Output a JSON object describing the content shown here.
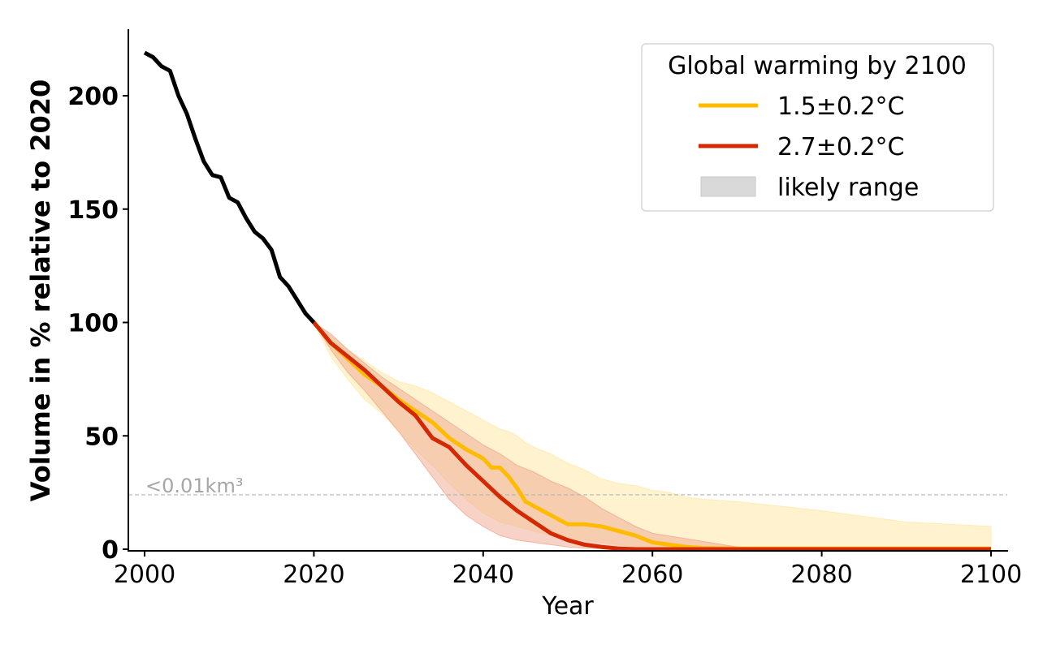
{
  "chart_data": {
    "type": "line",
    "title": "",
    "xlabel": "Year",
    "ylabel": "Volume in % relative to 2020",
    "xlim": [
      1998.5,
      2102
    ],
    "ylim": [
      0,
      229
    ],
    "xticks": [
      2000,
      2020,
      2040,
      2060,
      2080,
      2100
    ],
    "xtick_labels": [
      "2000",
      "2020",
      "2040",
      "2060",
      "2080",
      "2100"
    ],
    "yticks": [
      0,
      50,
      100,
      150,
      200
    ],
    "ytick_labels": [
      "0",
      "50",
      "100",
      "150",
      "200"
    ],
    "grid": false,
    "threshold": {
      "value": 24,
      "label": "<0.01km³",
      "color": "#b3b3b3",
      "style": "dashed"
    },
    "legend": {
      "title": "Global warming by 2100",
      "placement": "top-right",
      "entries": [
        {
          "label": "1.5±0.2°C",
          "kind": "line",
          "color": "#ffbb00"
        },
        {
          "label": "2.7±0.2°C",
          "kind": "line",
          "color": "#d42800"
        },
        {
          "label": "likely range",
          "kind": "patch",
          "color": "#d9d9d9"
        }
      ]
    },
    "series": [
      {
        "name": "observed",
        "color": "#000000",
        "x": [
          2000,
          2001,
          2002,
          2003,
          2004,
          2005,
          2006,
          2007,
          2008,
          2009,
          2010,
          2011,
          2012,
          2013,
          2014,
          2015,
          2016,
          2017,
          2018,
          2019,
          2020
        ],
        "values": [
          219,
          217,
          213,
          211,
          200,
          192,
          181,
          171,
          165,
          164,
          155,
          153,
          146,
          140,
          137,
          132,
          120,
          116,
          110,
          104,
          100
        ]
      },
      {
        "name": "1.5±0.2°C",
        "color": "#ffbb00",
        "band_color": "#ffe9a8",
        "x": [
          2020,
          2022,
          2024,
          2026,
          2028,
          2030,
          2032,
          2034,
          2036,
          2038,
          2040,
          2041,
          2042,
          2043,
          2044,
          2045,
          2046,
          2048,
          2050,
          2052,
          2054,
          2056,
          2058,
          2060,
          2062,
          2064,
          2066,
          2070,
          2080,
          2090,
          2100
        ],
        "values": [
          100,
          91,
          84,
          77,
          72,
          66,
          61,
          56,
          49,
          44,
          40,
          36,
          36,
          32,
          27,
          21,
          19,
          15,
          11,
          11,
          10,
          8,
          6,
          3,
          2,
          1,
          0.5,
          0.3,
          0.3,
          0.3,
          0.3
        ],
        "lower": [
          100,
          85,
          75,
          66,
          60,
          52,
          44,
          37,
          29,
          22,
          16,
          14,
          12,
          11,
          10,
          9,
          8,
          6,
          5,
          4,
          3,
          2,
          1,
          0.5,
          0.3,
          0.2,
          0.1,
          0,
          0,
          0,
          0
        ],
        "upper": [
          100,
          94,
          88,
          83,
          78,
          74,
          72,
          69,
          65,
          61,
          57,
          55,
          53,
          52,
          50,
          47,
          45,
          42,
          38,
          35,
          31,
          29,
          28,
          26,
          25,
          23,
          22,
          21,
          17,
          12,
          10
        ]
      },
      {
        "name": "2.7±0.2°C",
        "color": "#d42800",
        "band_color": "#f0a890",
        "x": [
          2020,
          2022,
          2024,
          2026,
          2028,
          2030,
          2032,
          2034,
          2036,
          2038,
          2040,
          2042,
          2044,
          2046,
          2048,
          2050,
          2052,
          2054,
          2056,
          2058,
          2060,
          2070,
          2080,
          2090,
          2100
        ],
        "values": [
          100,
          91,
          85,
          79,
          72,
          65,
          59,
          49,
          45,
          37,
          30,
          23,
          17,
          12,
          7,
          4,
          2,
          1,
          0.3,
          0,
          0,
          0,
          0,
          0,
          0
        ],
        "lower": [
          100,
          88,
          78,
          70,
          61,
          52,
          42,
          32,
          22,
          15,
          10,
          6,
          4,
          3,
          2,
          1,
          0.5,
          0.2,
          0.1,
          0,
          0,
          0,
          0,
          0,
          0
        ],
        "upper": [
          100,
          95,
          88,
          82,
          76,
          71,
          66,
          61,
          56,
          51,
          46,
          42,
          37,
          34,
          30,
          27,
          23,
          18,
          14,
          10,
          7,
          1,
          0,
          0,
          0
        ]
      }
    ]
  }
}
